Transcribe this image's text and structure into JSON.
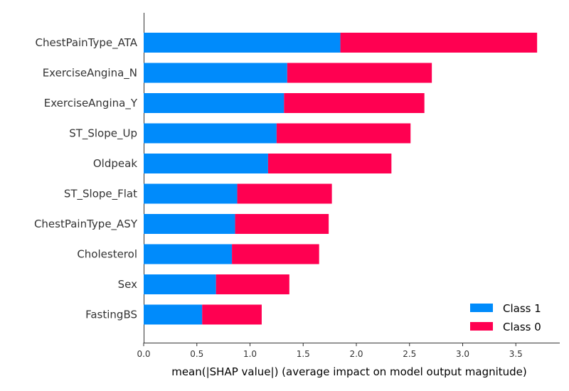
{
  "chart_data": {
    "type": "bar",
    "orientation": "horizontal",
    "stacked": true,
    "categories": [
      "ChestPainType_ATA",
      "ExerciseAngina_N",
      "ExerciseAngina_Y",
      "ST_Slope_Up",
      "Oldpeak",
      "ST_Slope_Flat",
      "ChestPainType_ASY",
      "Cholesterol",
      "Sex",
      "FastingBS"
    ],
    "series": [
      {
        "name": "Class 1",
        "color": "#008bfb",
        "values": [
          1.85,
          1.35,
          1.32,
          1.25,
          1.17,
          0.88,
          0.86,
          0.83,
          0.68,
          0.55
        ]
      },
      {
        "name": "Class 0",
        "color": "#ff0051",
        "values": [
          1.85,
          1.36,
          1.32,
          1.26,
          1.16,
          0.89,
          0.88,
          0.82,
          0.69,
          0.56
        ]
      }
    ],
    "xlabel": "mean(|SHAP value|) (average impact on model output magnitude)",
    "ylabel": "",
    "title": "",
    "xlim": [
      0,
      3.8
    ],
    "xticks": [
      "0.0",
      "0.5",
      "1.0",
      "1.5",
      "2.0",
      "2.5",
      "3.0",
      "3.5"
    ],
    "grid": false,
    "legend_position": "bottom-right"
  }
}
